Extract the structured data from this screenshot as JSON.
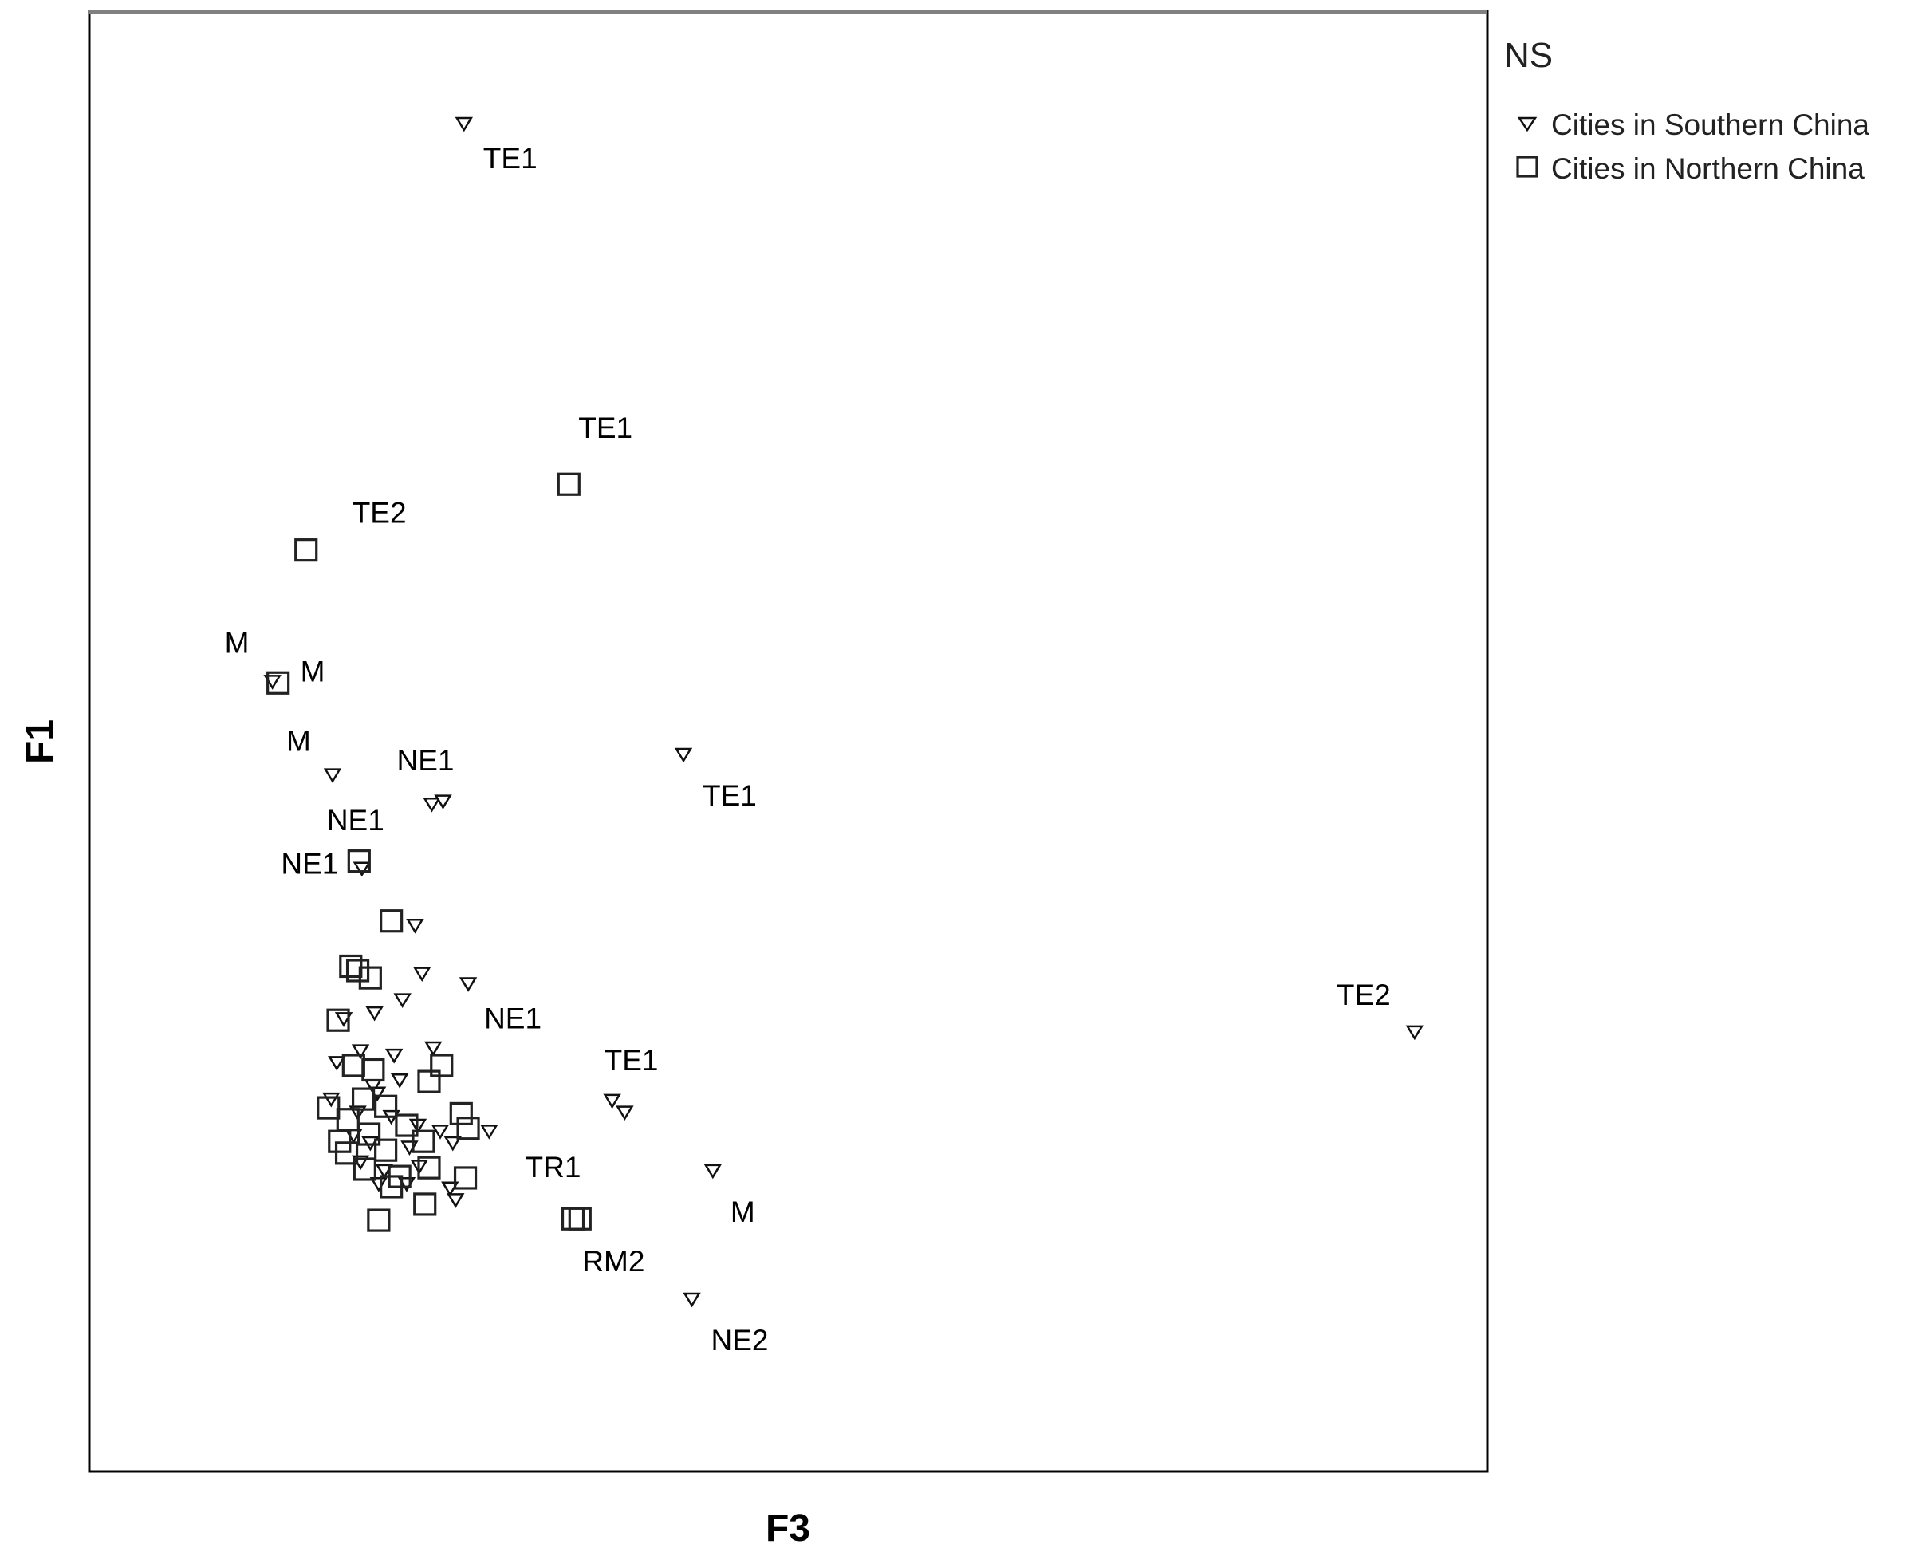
{
  "chart_data": {
    "type": "scatter",
    "title": "",
    "xlabel": "F3",
    "ylabel": "F1",
    "xlim": [
      0,
      100
    ],
    "ylim": [
      0,
      100
    ],
    "grid": false,
    "legend": {
      "title": "NS",
      "placement": "top-right-outside",
      "entries": [
        "Cities in Southern China",
        "Cities in Northern China"
      ]
    },
    "series": [
      {
        "name": "Cities in Southern China",
        "marker": "triangle-down",
        "points": [
          {
            "x": 26.8,
            "y": 92.3,
            "label": "TE1"
          },
          {
            "x": 13.1,
            "y": 54.1,
            "label": "M"
          },
          {
            "x": 17.4,
            "y": 47.7,
            "label": "M"
          },
          {
            "x": 42.5,
            "y": 49.1,
            "label": "TE1"
          },
          {
            "x": 24.5,
            "y": 45.7,
            "label": "NE1"
          },
          {
            "x": 25.3,
            "y": 45.9
          },
          {
            "x": 94.8,
            "y": 30.1,
            "label": "TE2"
          },
          {
            "x": 37.4,
            "y": 25.4,
            "label": "TE1"
          },
          {
            "x": 38.3,
            "y": 24.6
          },
          {
            "x": 44.6,
            "y": 20.6,
            "label": "M"
          },
          {
            "x": 43.1,
            "y": 11.8,
            "label": "NE2"
          },
          {
            "x": 19.5,
            "y": 41.3,
            "label": "NE1"
          },
          {
            "x": 23.3,
            "y": 37.4
          },
          {
            "x": 27.1,
            "y": 33.4,
            "label": "NE1"
          },
          {
            "x": 23.8,
            "y": 34.1
          },
          {
            "x": 22.4,
            "y": 32.3
          },
          {
            "x": 20.4,
            "y": 31.4
          },
          {
            "x": 18.2,
            "y": 31.0
          },
          {
            "x": 24.6,
            "y": 29.0
          },
          {
            "x": 21.8,
            "y": 28.5
          },
          {
            "x": 19.4,
            "y": 28.8
          },
          {
            "x": 17.7,
            "y": 28.0
          },
          {
            "x": 22.2,
            "y": 26.8
          },
          {
            "x": 20.3,
            "y": 26.4
          },
          {
            "x": 17.3,
            "y": 25.5
          },
          {
            "x": 19.2,
            "y": 24.6
          },
          {
            "x": 21.6,
            "y": 24.3
          },
          {
            "x": 23.5,
            "y": 23.7
          },
          {
            "x": 25.1,
            "y": 23.3
          },
          {
            "x": 28.6,
            "y": 23.3
          },
          {
            "x": 20.1,
            "y": 22.5
          },
          {
            "x": 22.9,
            "y": 22.2
          },
          {
            "x": 26.0,
            "y": 22.5
          },
          {
            "x": 19.4,
            "y": 21.2
          },
          {
            "x": 21.1,
            "y": 20.6
          },
          {
            "x": 23.6,
            "y": 20.9
          },
          {
            "x": 20.7,
            "y": 19.7
          },
          {
            "x": 25.8,
            "y": 19.4
          },
          {
            "x": 26.2,
            "y": 18.6
          },
          {
            "x": 18.9,
            "y": 23.0
          },
          {
            "x": 20.6,
            "y": 25.9
          },
          {
            "x": 22.7,
            "y": 19.7
          }
        ]
      },
      {
        "name": "Cities in Northern China",
        "marker": "square",
        "points": [
          {
            "x": 34.3,
            "y": 67.6,
            "label": "TE1"
          },
          {
            "x": 15.5,
            "y": 63.1,
            "label": "TE2"
          },
          {
            "x": 13.5,
            "y": 54.0,
            "label": "M"
          },
          {
            "x": 19.3,
            "y": 41.8,
            "label": "NE1"
          },
          {
            "x": 21.6,
            "y": 37.7
          },
          {
            "x": 18.7,
            "y": 34.6
          },
          {
            "x": 19.2,
            "y": 34.3
          },
          {
            "x": 20.1,
            "y": 33.8
          },
          {
            "x": 17.8,
            "y": 30.9
          },
          {
            "x": 18.9,
            "y": 27.8
          },
          {
            "x": 20.3,
            "y": 27.5
          },
          {
            "x": 24.3,
            "y": 26.7
          },
          {
            "x": 25.2,
            "y": 27.8
          },
          {
            "x": 19.6,
            "y": 25.5
          },
          {
            "x": 21.2,
            "y": 25.0
          },
          {
            "x": 17.1,
            "y": 24.9
          },
          {
            "x": 18.5,
            "y": 24.1
          },
          {
            "x": 22.7,
            "y": 23.7
          },
          {
            "x": 26.6,
            "y": 24.5
          },
          {
            "x": 27.1,
            "y": 23.5
          },
          {
            "x": 17.9,
            "y": 22.6
          },
          {
            "x": 20.0,
            "y": 23.1
          },
          {
            "x": 21.2,
            "y": 22.0
          },
          {
            "x": 23.9,
            "y": 22.6
          },
          {
            "x": 24.3,
            "y": 20.8
          },
          {
            "x": 18.4,
            "y": 21.8
          },
          {
            "x": 19.7,
            "y": 20.7
          },
          {
            "x": 22.2,
            "y": 20.2
          },
          {
            "x": 26.9,
            "y": 20.1
          },
          {
            "x": 21.6,
            "y": 19.5
          },
          {
            "x": 24.0,
            "y": 18.3
          },
          {
            "x": 20.7,
            "y": 17.2
          },
          {
            "x": 34.6,
            "y": 17.3,
            "label": "TR1"
          },
          {
            "x": 35.1,
            "y": 17.3,
            "label": "RM2"
          }
        ]
      }
    ]
  }
}
